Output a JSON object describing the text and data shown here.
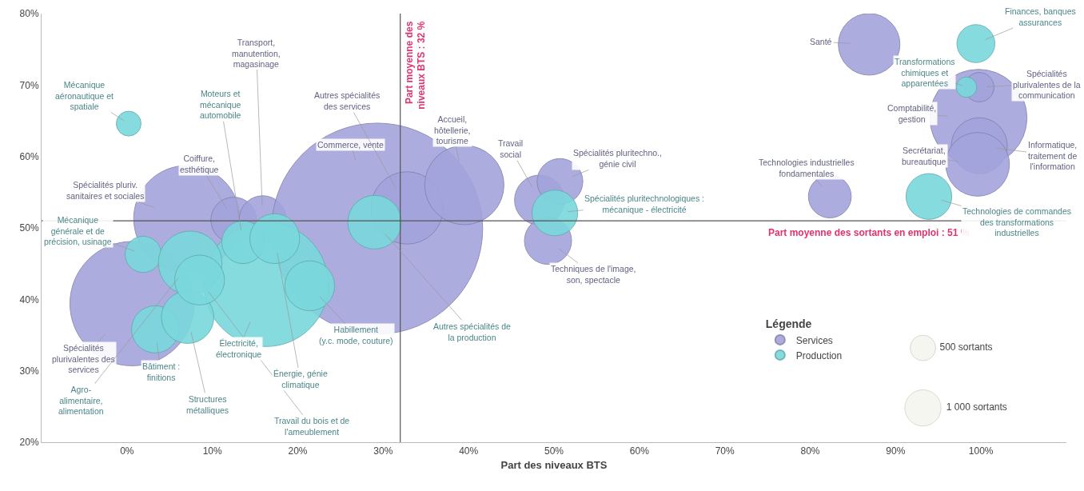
{
  "chart_data": {
    "type": "bubble",
    "xlabel": "Part des niveaux BTS",
    "legend_title": "Légende",
    "legend": "bottom right",
    "grid": false,
    "xlim": [
      -10,
      110
    ],
    "xticks": [
      {
        "value": 0,
        "label": "0%"
      },
      {
        "value": 10,
        "label": "10%"
      },
      {
        "value": 20,
        "label": "20%"
      },
      {
        "value": 30,
        "label": "30%"
      },
      {
        "value": 40,
        "label": "40%"
      },
      {
        "value": 50,
        "label": "50%"
      },
      {
        "value": 60,
        "label": "60%"
      },
      {
        "value": 70,
        "label": "70%"
      },
      {
        "value": 80,
        "label": "80%"
      },
      {
        "value": 90,
        "label": "90%"
      },
      {
        "value": 100,
        "label": "100%"
      }
    ],
    "ylim": [
      20,
      80
    ],
    "yticks": [
      {
        "value": 20,
        "label": "20%"
      },
      {
        "value": 30,
        "label": "30%"
      },
      {
        "value": 40,
        "label": "40%"
      },
      {
        "value": 50,
        "label": "50%"
      },
      {
        "value": 60,
        "label": "60%"
      },
      {
        "value": 70,
        "label": "70%"
      },
      {
        "value": 80,
        "label": "80%"
      }
    ],
    "size_legend": [
      {
        "value": 500,
        "label": "500 sortants"
      },
      {
        "value": 1000,
        "label": "1 000 sortants"
      }
    ],
    "series": [
      {
        "name": "Services",
        "color": "#a4a4dc",
        "x": [
          0.6,
          7.0,
          12.5,
          15.9,
          29.3,
          32.8,
          39.5,
          48.3,
          50.7,
          49.3,
          86.9,
          82.3,
          99.7,
          99.8,
          99.8,
          99.6
        ],
        "values": [
          39.4,
          51.3,
          51.1,
          51.2,
          49.9,
          52.8,
          56.0,
          53.9,
          56.5,
          48.2,
          75.7,
          54.4,
          65.4,
          69.7,
          61.5,
          58.9
        ],
        "sizes": [
          11800,
          8600,
          1600,
          1700,
          34000,
          4000,
          4800,
          1900,
          1600,
          1700,
          2900,
          1400,
          7200,
          660,
          2400,
          3100
        ]
      },
      {
        "name": "Production",
        "color": "#7ad8dc",
        "x": [
          16.3,
          0.2,
          13.6,
          1.9,
          7.4,
          3.3,
          7.1,
          8.5,
          17.3,
          21.4,
          29.0,
          50.1,
          98.3,
          99.4,
          93.9
        ],
        "values": [
          42.1,
          64.6,
          48.0,
          46.3,
          45.1,
          35.8,
          37.5,
          42.7,
          48.5,
          41.9,
          50.8,
          52.1,
          69.7,
          75.8,
          54.4
        ],
        "sizes": [
          11800,
          470,
          1400,
          1000,
          3100,
          1700,
          2100,
          1900,
          1900,
          1900,
          2200,
          1600,
          320,
          1100,
          1600
        ]
      }
    ],
    "ref_lines": [
      {
        "axis": "x",
        "value": 32,
        "label": "Part moyenne des\nniveaux BTS : 32 %",
        "color": "#555555"
      },
      {
        "axis": "y",
        "value": 51,
        "label": "Part moyenne des sortants en emploi : 51 %",
        "color": "#555555"
      }
    ],
    "annotations": [
      {
        "text": "Spécialités\nplurivalentes des\nservices",
        "x": 0.6,
        "y": 39.4
      },
      {
        "text": "Spécialités pluriv.\nsanitaires et sociales",
        "x": 7.0,
        "y": 51.3
      },
      {
        "text": "Coiffure,\nesthétique",
        "x": 12.5,
        "y": 51.1
      },
      {
        "text": "Transport,\nmanutention,\nmagasinage",
        "x": 15.9,
        "y": 51.2
      },
      {
        "text": "Commerce, vente",
        "x": 29.3,
        "y": 49.9
      },
      {
        "text": "Autres spécialités\ndes services",
        "x": 32.8,
        "y": 52.8
      },
      {
        "text": "Accueil,\nhôtellerie,\ntourisme",
        "x": 39.5,
        "y": 56.0
      },
      {
        "text": "Travail\nsocial",
        "x": 48.3,
        "y": 53.9
      },
      {
        "text": "Spécialités pluritechno.,\ngénie civil",
        "x": 50.7,
        "y": 56.5
      },
      {
        "text": "Techniques de l'image,\nson, spectacle",
        "x": 49.3,
        "y": 48.2
      },
      {
        "text": "Santé",
        "x": 86.9,
        "y": 75.7
      },
      {
        "text": "Technologies industrielles\nfondamentales",
        "x": 82.3,
        "y": 54.4
      },
      {
        "text": "Comptabilité,\ngestion",
        "x": 99.7,
        "y": 65.4
      },
      {
        "text": "Spécialités\nplurivalentes de la\ncommunication",
        "x": 99.8,
        "y": 69.7
      },
      {
        "text": "Informatique,\ntraitement de\nl'information",
        "x": 99.8,
        "y": 61.5
      },
      {
        "text": "Secrétariat,\nbureautique",
        "x": 99.6,
        "y": 58.9
      },
      {
        "text": "Mécanique\naéronautique et\nspatiale",
        "x": 0.2,
        "y": 64.6
      },
      {
        "text": "Moteurs et\nmécanique\nautomobile",
        "x": 13.6,
        "y": 48.0
      },
      {
        "text": "Mécanique\ngénérale et de\nprécision, usinage",
        "x": 1.9,
        "y": 46.3
      },
      {
        "text": "Agro-\nalimentaire,\nalimentation",
        "x": 7.4,
        "y": 45.1
      },
      {
        "text": "Bâtiment :\nfinitions",
        "x": 3.3,
        "y": 35.8
      },
      {
        "text": "Structures\nmétalliques",
        "x": 7.1,
        "y": 37.5
      },
      {
        "text": "Travail du bois et de\nl'ameublement",
        "x": 8.5,
        "y": 42.7
      },
      {
        "text": "Électricité,\nélectronique",
        "x": 16.3,
        "y": 42.1
      },
      {
        "text": "Énergie, génie\nclimatique",
        "x": 17.3,
        "y": 48.5
      },
      {
        "text": "Habillement\n(y.c. mode, couture)",
        "x": 21.4,
        "y": 41.9
      },
      {
        "text": "Autres spécialités de\nla production",
        "x": 29.0,
        "y": 50.8
      },
      {
        "text": "Spécialités pluritechnologiques :\nmécanique - électricité",
        "x": 50.1,
        "y": 52.1
      },
      {
        "text": "Transformations\nchimiques et\napparentées",
        "x": 98.3,
        "y": 69.7
      },
      {
        "text": "Finances, banques\nassurances",
        "x": 99.4,
        "y": 75.8
      },
      {
        "text": "Technologies de commandes\ndes transformations\nindustrielles",
        "x": 93.9,
        "y": 54.4
      }
    ]
  }
}
